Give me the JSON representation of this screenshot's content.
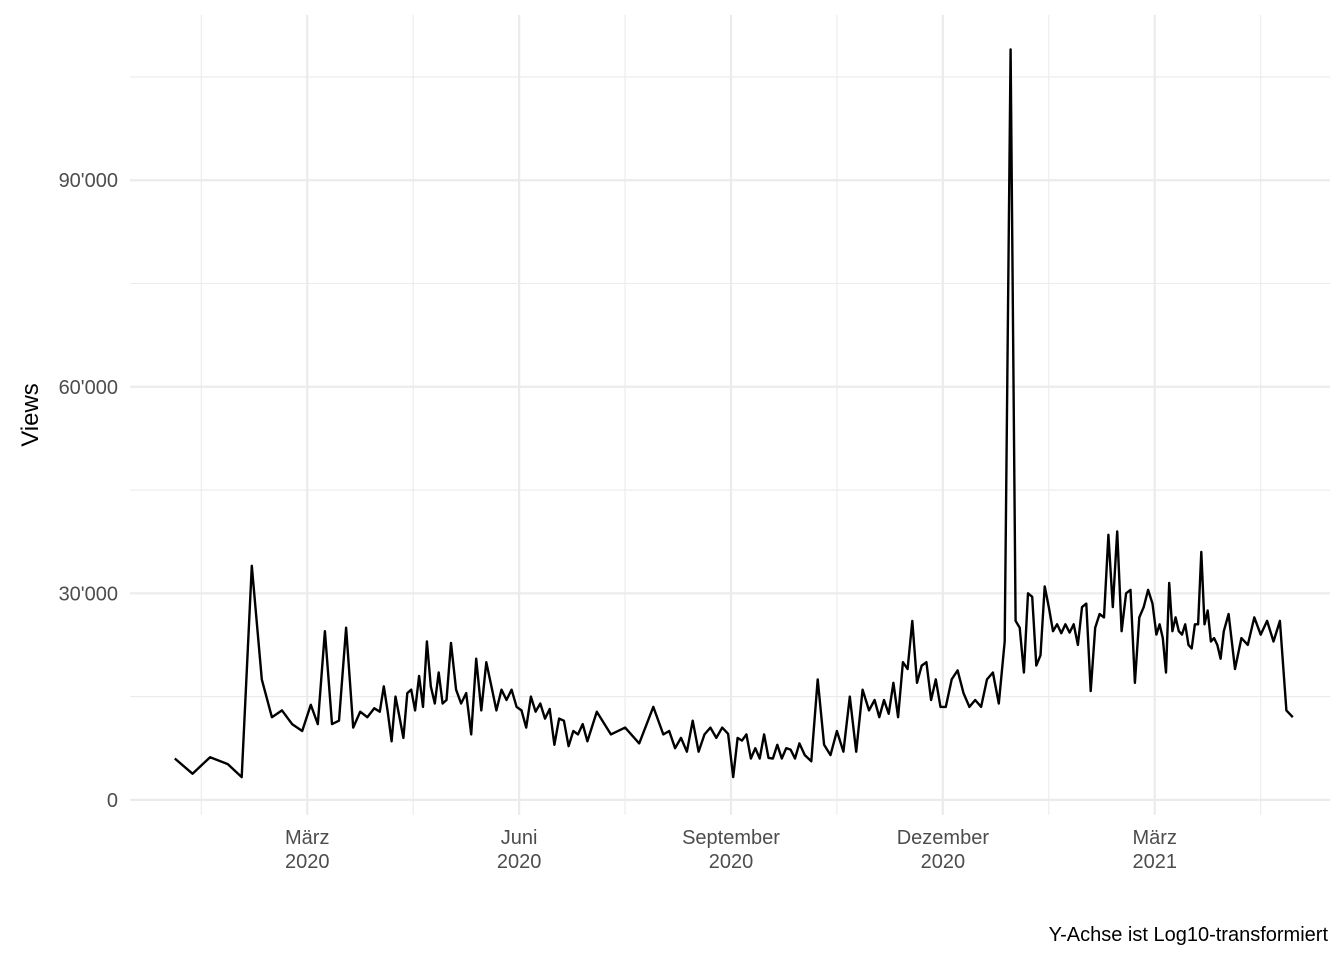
{
  "chart_data": {
    "type": "line",
    "y_label": "Views",
    "caption": "Y-Achse ist Log10-transformiert",
    "x": [
      "2020-01",
      "2020-01",
      "2020-01",
      "2020-01",
      "2020-02",
      "2020-02",
      "2020-02",
      "2020-02",
      "2020-02",
      "2020-02",
      "2020-02",
      "2020-03",
      "2020-03",
      "2020-03",
      "2020-03",
      "2020-03",
      "2020-03",
      "2020-03",
      "2020-03",
      "2020-03",
      "2020-03",
      "2020-04",
      "2020-04",
      "2020-04",
      "2020-04",
      "2020-04",
      "2020-04",
      "2020-04",
      "2020-04",
      "2020-04",
      "2020-04",
      "2020-04",
      "2020-04",
      "2020-04",
      "2020-04",
      "2020-04",
      "2020-04",
      "2020-04",
      "2020-04",
      "2020-05",
      "2020-05",
      "2020-05",
      "2020-05",
      "2020-05",
      "2020-05",
      "2020-05",
      "2020-05",
      "2020-05",
      "2020-05",
      "2020-05",
      "2020-05",
      "2020-05",
      "2020-05",
      "2020-06",
      "2020-06",
      "2020-06",
      "2020-06",
      "2020-06",
      "2020-06",
      "2020-06",
      "2020-06",
      "2020-06",
      "2020-06",
      "2020-06",
      "2020-06",
      "2020-06",
      "2020-06",
      "2020-06",
      "2020-07",
      "2020-07",
      "2020-07",
      "2020-07",
      "2020-07",
      "2020-08",
      "2020-08",
      "2020-08",
      "2020-08",
      "2020-08",
      "2020-08",
      "2020-08",
      "2020-08",
      "2020-08",
      "2020-08",
      "2020-08",
      "2020-08",
      "2020-09",
      "2020-09",
      "2020-09",
      "2020-09",
      "2020-09",
      "2020-09",
      "2020-09",
      "2020-09",
      "2020-09",
      "2020-09",
      "2020-09",
      "2020-09",
      "2020-09",
      "2020-09",
      "2020-09",
      "2020-09",
      "2020-10",
      "2020-10",
      "2020-10",
      "2020-10",
      "2020-10",
      "2020-10",
      "2020-10",
      "2020-10",
      "2020-10",
      "2020-10",
      "2020-10",
      "2020-11",
      "2020-11",
      "2020-11",
      "2020-11",
      "2020-11",
      "2020-11",
      "2020-11",
      "2020-11",
      "2020-11",
      "2020-11",
      "2020-11",
      "2020-11",
      "2020-11",
      "2020-11",
      "2020-11",
      "2020-12",
      "2020-12",
      "2020-12",
      "2020-12",
      "2020-12",
      "2020-12",
      "2020-12",
      "2020-12",
      "2020-12",
      "2020-12",
      "2020-12",
      "2020-12",
      "2021-01",
      "2021-01",
      "2021-01",
      "2021-01",
      "2021-01",
      "2021-01",
      "2021-01",
      "2021-01",
      "2021-01",
      "2021-01",
      "2021-01",
      "2021-01",
      "2021-01",
      "2021-01",
      "2021-01",
      "2021-01",
      "2021-01",
      "2021-02",
      "2021-02",
      "2021-02",
      "2021-02",
      "2021-02",
      "2021-02",
      "2021-02",
      "2021-02",
      "2021-02",
      "2021-02",
      "2021-02",
      "2021-02",
      "2021-02",
      "2021-02",
      "2021-02",
      "2021-02",
      "2021-03",
      "2021-03",
      "2021-03",
      "2021-03",
      "2021-03",
      "2021-03",
      "2021-03",
      "2021-03",
      "2021-03",
      "2021-03",
      "2021-03",
      "2021-03",
      "2021-03",
      "2021-03",
      "2021-03",
      "2021-03",
      "2021-03",
      "2021-03",
      "2021-03",
      "2021-03",
      "2021-03",
      "2021-03",
      "2021-04",
      "2021-04",
      "2021-04",
      "2021-04",
      "2021-04",
      "2021-04",
      "2021-04",
      "2021-04",
      "2021-04",
      "2021-04",
      "2021-04"
    ],
    "series": [
      {
        "color": "#000000",
        "values": [
          6000,
          3800,
          6200,
          5200,
          3300,
          34000,
          17500,
          12000,
          13000,
          11000,
          10000,
          13800,
          11000,
          24500,
          11000,
          11500,
          25000,
          10500,
          12800,
          12000,
          13300,
          12800,
          16500,
          12800,
          8500,
          15000,
          12000,
          9000,
          15500,
          16000,
          13000,
          18000,
          13500,
          23000,
          16500,
          14000,
          18500,
          14000,
          14500,
          22800,
          16000,
          14000,
          15500,
          9500,
          20500,
          13000,
          20000,
          16500,
          13000,
          16000,
          14500,
          16000,
          13500,
          13000,
          10500,
          15000,
          12800,
          14000,
          11800,
          13200,
          8000,
          11800,
          11500,
          7800,
          10000,
          9500,
          11000,
          8500,
          12800,
          9500,
          10500,
          8200,
          13500,
          9500,
          10000,
          7500,
          9000,
          7000,
          11500,
          7000,
          9500,
          10500,
          9000,
          10500,
          9600,
          3300,
          9000,
          8600,
          9500,
          6000,
          7500,
          6000,
          9500,
          6100,
          6000,
          8000,
          6000,
          7500,
          7300,
          6000,
          8200,
          6500,
          5600,
          17500,
          8000,
          6500,
          10000,
          7000,
          15000,
          7000,
          16000,
          13000,
          14500,
          12000,
          14500,
          12500,
          17000,
          12000,
          20000,
          19000,
          26000,
          17000,
          19500,
          20000,
          14500,
          17500,
          13500,
          13500,
          17500,
          18800,
          15500,
          13500,
          14500,
          13500,
          17500,
          18500,
          14000,
          23000,
          109000,
          26000,
          25000,
          18500,
          30000,
          29500,
          19500,
          21000,
          31000,
          28000,
          24500,
          25500,
          24200,
          25500,
          24300,
          25500,
          22500,
          28000,
          28500,
          15800,
          25000,
          27000,
          26500,
          38500,
          28000,
          39000,
          24500,
          30000,
          30500,
          17000,
          26500,
          28000,
          30500,
          28500,
          24000,
          25500,
          23500,
          18500,
          31500,
          24500,
          26500,
          24500,
          24000,
          25500,
          22500,
          22000,
          25500,
          25500,
          36000,
          25500,
          27500,
          23000,
          23500,
          22500,
          20500,
          24500,
          27000,
          19000,
          23500,
          22500,
          26500,
          24000,
          26000,
          23000,
          26000,
          13000,
          12000
        ]
      }
    ],
    "xlim": [
      "2020-01",
      "2021-04"
    ],
    "xticks": [
      {
        "value": "2020-03",
        "label": "März 2020"
      },
      {
        "value": "2020-06",
        "label": "Juni 2020"
      },
      {
        "value": "2020-09",
        "label": "September 2020"
      },
      {
        "value": "2020-12",
        "label": "Dezember 2020"
      },
      {
        "value": "2021-03",
        "label": "März 2021"
      }
    ],
    "ylim": [
      -2200,
      114000
    ],
    "yticks": [
      0,
      {
        "value": 30000,
        "label": "30'000"
      },
      {
        "value": 60000,
        "label": "60'000"
      },
      {
        "value": 90000,
        "label": "90'000"
      }
    ],
    "grid": true
  }
}
